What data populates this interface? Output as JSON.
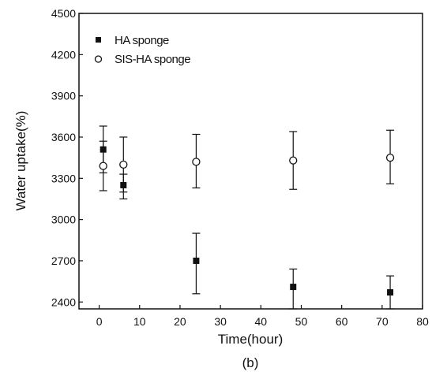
{
  "chart_data": {
    "type": "scatter",
    "xlabel": "Time(hour)",
    "ylabel": "Water uptake(%)",
    "caption": "(b)",
    "xlim": [
      -5,
      80
    ],
    "ylim": [
      2350,
      4500
    ],
    "xticks": [
      0,
      10,
      20,
      30,
      40,
      50,
      60,
      70,
      80
    ],
    "yticks": [
      2400,
      2700,
      3000,
      3300,
      3600,
      3900,
      4200,
      4500
    ],
    "grid": false,
    "legend": "top-left",
    "series": [
      {
        "name": "HA sponge",
        "marker": "filled-square",
        "color": "#111111",
        "x": [
          1,
          6,
          24,
          48,
          72
        ],
        "y": [
          3510,
          3250,
          2700,
          2510,
          2470
        ],
        "err_low": [
          3340,
          3150,
          2460,
          2350,
          2350
        ],
        "err_high": [
          3680,
          3330,
          2900,
          2640,
          2590
        ]
      },
      {
        "name": "SIS-HA sponge",
        "marker": "open-circle",
        "color": "#111111",
        "x": [
          1,
          6,
          24,
          48,
          72
        ],
        "y": [
          3390,
          3400,
          3420,
          3430,
          3450
        ],
        "err_low": [
          3210,
          3200,
          3230,
          3220,
          3260
        ],
        "err_high": [
          3570,
          3600,
          3620,
          3640,
          3650
        ]
      }
    ]
  }
}
